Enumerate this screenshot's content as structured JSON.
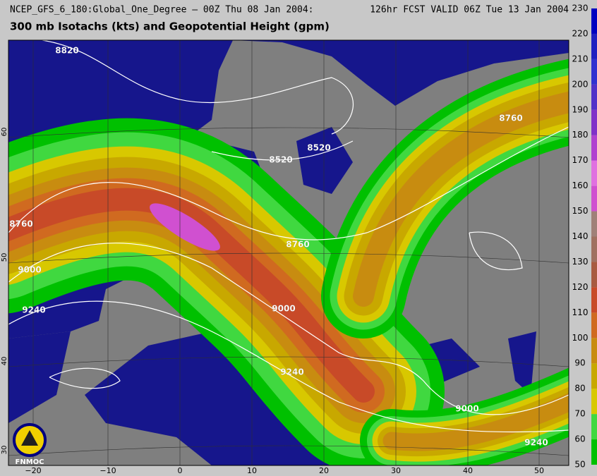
{
  "header": {
    "left": "NCEP_GFS_6_180:Global_One_Degree – 00Z Thu 08 Jan 2004:",
    "right": "126hr FCST VALID 06Z Tue 13 Jan 2004"
  },
  "title": "300 mb Isotachs (kts) and Geopotential Height (gpm)",
  "colorbar": {
    "levels": [
      50,
      60,
      70,
      80,
      90,
      100,
      110,
      120,
      130,
      140,
      150,
      160,
      170,
      180,
      190,
      200,
      210,
      220,
      230
    ],
    "colors": [
      "#00c000",
      "#40d840",
      "#d8c800",
      "#c8a800",
      "#c88c10",
      "#d06a20",
      "#c84a28",
      "#a85a40",
      "#a07060",
      "#a08078",
      "#d050d0",
      "#e070e0",
      "#b040d0",
      "#8030c8",
      "#5030c8",
      "#3030d0",
      "#2020c0",
      "#0000c0"
    ]
  },
  "map": {
    "lon_labels": [
      "−20",
      "−10",
      "0",
      "10",
      "20",
      "30",
      "40",
      "50"
    ],
    "lat_labels": [
      "30",
      "40",
      "50",
      "60"
    ],
    "contour_labels": [
      "8820",
      "8520",
      "8520",
      "8760",
      "8760",
      "8760",
      "9000",
      "9000",
      "9000",
      "9240",
      "9240",
      "9240"
    ]
  },
  "logo": "FNMOC"
}
